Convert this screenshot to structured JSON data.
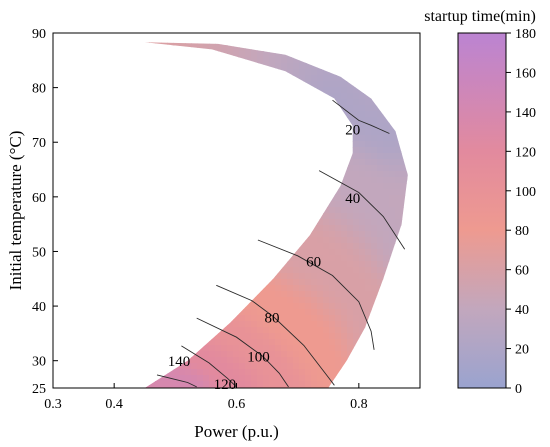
{
  "chart_data": {
    "type": "contour",
    "xlabel": "Power (p.u.)",
    "ylabel": "Initial temperature (°C)",
    "xlim": [
      0.3,
      0.9
    ],
    "ylim": [
      25,
      90
    ],
    "xticks": [
      0.3,
      0.4,
      0.6,
      0.8
    ],
    "xtick_labels": [
      "0.3",
      "0.4",
      "0.6",
      "0.8"
    ],
    "yticks": [
      25,
      30,
      40,
      50,
      60,
      70,
      80,
      90
    ],
    "ytick_labels": [
      "25",
      "30",
      "40",
      "50",
      "60",
      "70",
      "80",
      "90"
    ],
    "region_boundary": {
      "left": [
        [
          0.45,
          25
        ],
        [
          0.52,
          30
        ],
        [
          0.59,
          37
        ],
        [
          0.66,
          45
        ],
        [
          0.72,
          53
        ],
        [
          0.77,
          62
        ],
        [
          0.79,
          68
        ],
        [
          0.79,
          73
        ],
        [
          0.76,
          78
        ],
        [
          0.68,
          83
        ],
        [
          0.56,
          87
        ],
        [
          0.45,
          88.3
        ]
      ],
      "right": [
        [
          0.45,
          88.3
        ],
        [
          0.57,
          88
        ],
        [
          0.68,
          86
        ],
        [
          0.77,
          82
        ],
        [
          0.82,
          78
        ],
        [
          0.86,
          72
        ],
        [
          0.88,
          64
        ],
        [
          0.87,
          55
        ],
        [
          0.84,
          45
        ],
        [
          0.81,
          36
        ],
        [
          0.78,
          30
        ],
        [
          0.75,
          25
        ]
      ]
    },
    "contours": [
      {
        "level": 20,
        "label": "20",
        "label_at": [
          0.79,
          72.3
        ],
        "points": [
          [
            0.757,
            77.7
          ],
          [
            0.8,
            74.0
          ],
          [
            0.82,
            73.1
          ],
          [
            0.85,
            71.6
          ]
        ]
      },
      {
        "level": 40,
        "label": "40",
        "label_at": [
          0.79,
          59.8
        ],
        "points": [
          [
            0.735,
            64.8
          ],
          [
            0.8,
            60.8
          ],
          [
            0.84,
            56.4
          ],
          [
            0.86,
            53.0
          ],
          [
            0.875,
            50.4
          ]
        ]
      },
      {
        "level": 60,
        "label": "60",
        "label_at": [
          0.726,
          48.2
        ],
        "points": [
          [
            0.635,
            52.1
          ],
          [
            0.7,
            49.2
          ],
          [
            0.757,
            45.6
          ],
          [
            0.8,
            40.8
          ],
          [
            0.82,
            35.4
          ],
          [
            0.825,
            32.0
          ]
        ]
      },
      {
        "level": 80,
        "label": "80",
        "label_at": [
          0.658,
          37.9
        ],
        "points": [
          [
            0.567,
            43.8
          ],
          [
            0.625,
            41.0
          ],
          [
            0.66,
            38.1
          ],
          [
            0.71,
            32.8
          ],
          [
            0.75,
            27.0
          ],
          [
            0.76,
            25.5
          ]
        ]
      },
      {
        "level": 100,
        "label": "100",
        "label_at": [
          0.636,
          30.8
        ],
        "points": [
          [
            0.535,
            37.8
          ],
          [
            0.6,
            34.3
          ],
          [
            0.643,
            30.8
          ],
          [
            0.67,
            27.7
          ],
          [
            0.685,
            25.2
          ]
        ]
      },
      {
        "level": 120,
        "label": "120",
        "label_at": [
          0.581,
          25.7
        ],
        "points": [
          [
            0.51,
            32.7
          ],
          [
            0.555,
            29.6
          ],
          [
            0.585,
            26.8
          ],
          [
            0.6,
            25.2
          ]
        ]
      },
      {
        "level": 140,
        "label": "140",
        "label_at": [
          0.506,
          29.9
        ],
        "points": [
          [
            0.47,
            27.4
          ],
          [
            0.52,
            26.0
          ],
          [
            0.535,
            25.2
          ]
        ]
      }
    ],
    "colorbar": {
      "title": "startup time(min)",
      "min": 0,
      "max": 180,
      "ticks": [
        0,
        20,
        40,
        60,
        80,
        100,
        120,
        140,
        160,
        180
      ],
      "tick_labels": [
        "0",
        "20",
        "40",
        "60",
        "80",
        "100",
        "120",
        "140",
        "160",
        "180"
      ],
      "stops": [
        {
          "value": 0,
          "color": "#9aa3cf"
        },
        {
          "value": 40,
          "color": "#c2a7bd"
        },
        {
          "value": 80,
          "color": "#ee9a90"
        },
        {
          "value": 120,
          "color": "#e28a9e"
        },
        {
          "value": 180,
          "color": "#bb84d2"
        }
      ]
    }
  }
}
